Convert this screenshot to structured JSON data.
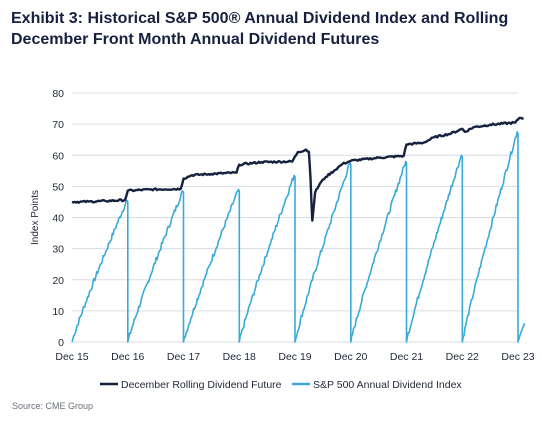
{
  "title_lines": [
    "Exhibit 3: Historical S&P 500® Annual Dividend Index and Rolling",
    "December Front Month Annual Dividend Futures"
  ],
  "source": "Source: CME Group",
  "colors": {
    "future": "#15213f",
    "index": "#3aa9d8",
    "grid": "#d9dde3"
  },
  "chart_data": {
    "type": "line",
    "title": "Exhibit 3: Historical S&P 500® Annual Dividend Index and Rolling December Front Month Annual Dividend Futures",
    "xlabel": "",
    "ylabel": "Index Points",
    "ylim": [
      0,
      80
    ],
    "yticks": [
      0,
      10,
      20,
      30,
      40,
      50,
      60,
      70,
      80
    ],
    "xlim": [
      "Dec 15",
      "Dec 23"
    ],
    "xticks": [
      "Dec 15",
      "Dec 16",
      "Dec 17",
      "Dec 18",
      "Dec 19",
      "Dec 20",
      "Dec 21",
      "Dec 22",
      "Dec 23"
    ],
    "grid": "horizontal",
    "legend": "bottom",
    "x_unit": "years since Dec 15",
    "series": [
      {
        "name": "December Rolling Dividend Future",
        "color": "#15213f",
        "points": [
          [
            0.0,
            45.0
          ],
          [
            0.3,
            45.1
          ],
          [
            0.6,
            45.3
          ],
          [
            0.95,
            45.6
          ],
          [
            1.0,
            48.6
          ],
          [
            1.4,
            49.0
          ],
          [
            1.95,
            49.2
          ],
          [
            2.0,
            52.5
          ],
          [
            2.15,
            53.6
          ],
          [
            2.5,
            54.0
          ],
          [
            2.95,
            54.4
          ],
          [
            3.0,
            57.0
          ],
          [
            3.4,
            57.8
          ],
          [
            3.95,
            58.0
          ],
          [
            4.05,
            61.0
          ],
          [
            4.2,
            61.8
          ],
          [
            4.25,
            61.0
          ],
          [
            4.28,
            52.0
          ],
          [
            4.31,
            39.0
          ],
          [
            4.36,
            48.0
          ],
          [
            4.45,
            51.0
          ],
          [
            4.55,
            53.0
          ],
          [
            4.7,
            55.0
          ],
          [
            4.85,
            57.2
          ],
          [
            5.0,
            58.2
          ],
          [
            5.5,
            59.2
          ],
          [
            5.95,
            59.8
          ],
          [
            6.0,
            63.5
          ],
          [
            6.3,
            64.0
          ],
          [
            6.5,
            65.8
          ],
          [
            6.8,
            67.0
          ],
          [
            7.0,
            68.5
          ],
          [
            7.05,
            67.5
          ],
          [
            7.2,
            69.0
          ],
          [
            7.5,
            69.8
          ],
          [
            7.95,
            70.5
          ],
          [
            8.0,
            71.5
          ],
          [
            8.05,
            72.0
          ],
          [
            8.1,
            71.8
          ]
        ]
      },
      {
        "name": "S&P 500 Annual Dividend Index",
        "color": "#3aa9d8",
        "cycles": [
          {
            "start": 0,
            "end": 45.5,
            "cycle_start": 0
          },
          {
            "start": 0,
            "end": 48.5,
            "cycle_start": 1
          },
          {
            "start": 0,
            "end": 49.0,
            "cycle_start": 2
          },
          {
            "start": 0,
            "end": 53.5,
            "cycle_start": 3
          },
          {
            "start": 0,
            "end": 57.5,
            "cycle_start": 4
          },
          {
            "start": 0,
            "end": 58.0,
            "cycle_start": 5
          },
          {
            "start": 0,
            "end": 60.0,
            "cycle_start": 6
          },
          {
            "start": 0,
            "end": 67.5,
            "cycle_start": 7
          }
        ],
        "final_points": [
          [
            8.0,
            0
          ],
          [
            8.05,
            3.0
          ],
          [
            8.12,
            6.0
          ]
        ]
      }
    ]
  }
}
